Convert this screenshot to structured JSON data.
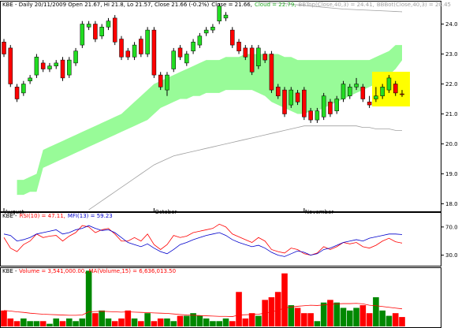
{
  "chart_data": [
    {
      "type": "candlestick",
      "title": "KBE - Daily 20/11/2009 Open 21.67, Hi 21.8, Lo 21.57, Close 21.66 (-0.2%)",
      "categories": [
        "August",
        null,
        null,
        null,
        null,
        null,
        null,
        null,
        null,
        null,
        null,
        null,
        null,
        null,
        null,
        null,
        null,
        null,
        null,
        null,
        null,
        null,
        null,
        "October",
        null,
        null,
        null,
        null,
        null,
        null,
        null,
        null,
        null,
        null,
        null,
        null,
        null,
        null,
        null,
        null,
        null,
        null,
        null,
        null,
        null,
        null,
        "November",
        null,
        null,
        null,
        null,
        null,
        null,
        null,
        null,
        null,
        null,
        null,
        null,
        null,
        null,
        null
      ],
      "candles": {
        "name": "Close = 21.66,",
        "color": "#000000",
        "up_color": "#22dd22",
        "down_color": "#ff0000",
        "open": [
          23.4,
          23.2,
          21.9,
          21.7,
          22.1,
          22.3,
          22.7,
          22.5,
          22.6,
          22.8,
          22.3,
          22.7,
          23.3,
          23.9,
          24.0,
          23.6,
          23.9,
          24.2,
          23.5,
          23.1,
          22.9,
          23.5,
          23.0,
          23.8,
          22.3,
          21.8,
          22.5,
          23.2,
          22.7,
          23.1,
          23.3,
          23.7,
          23.8,
          24.1,
          24.2,
          23.8,
          23.4,
          23.2,
          23.2,
          22.6,
          23.0,
          23.0,
          21.9,
          21.8,
          21.3,
          21.7,
          21.8,
          21.1,
          20.8,
          20.9,
          21.4,
          21.1,
          21.5,
          21.6,
          21.9,
          21.9,
          21.4,
          21.5,
          21.6,
          21.8,
          22.0,
          21.67
        ],
        "high": [
          23.5,
          23.3,
          22.0,
          22.1,
          22.3,
          23.0,
          22.8,
          22.7,
          22.8,
          22.9,
          22.9,
          23.2,
          24.1,
          24.1,
          24.1,
          24.0,
          24.2,
          24.3,
          23.6,
          23.2,
          23.4,
          23.6,
          23.9,
          23.9,
          22.4,
          22.4,
          23.2,
          23.3,
          23.1,
          23.5,
          23.7,
          23.9,
          24.0,
          24.7,
          24.4,
          23.9,
          23.5,
          23.3,
          23.3,
          23.3,
          23.1,
          23.1,
          22.0,
          21.9,
          21.9,
          21.8,
          21.9,
          21.2,
          21.2,
          21.7,
          21.5,
          21.6,
          22.1,
          22.0,
          22.2,
          22.0,
          21.6,
          21.9,
          22.0,
          22.3,
          22.1,
          21.8
        ],
        "low": [
          22.9,
          21.9,
          21.4,
          21.6,
          22.0,
          22.2,
          22.4,
          22.4,
          22.5,
          22.1,
          22.2,
          22.6,
          23.2,
          23.8,
          23.4,
          23.5,
          23.8,
          23.3,
          22.8,
          22.8,
          22.8,
          22.9,
          22.9,
          22.2,
          21.8,
          21.6,
          22.4,
          22.8,
          22.6,
          23.0,
          23.2,
          23.6,
          23.7,
          24.0,
          24.1,
          23.2,
          23.0,
          22.8,
          22.3,
          22.5,
          22.7,
          21.7,
          21.5,
          20.9,
          21.2,
          21.3,
          20.8,
          20.7,
          20.7,
          20.8,
          20.9,
          21.0,
          21.4,
          21.5,
          21.8,
          21.4,
          21.2,
          21.4,
          21.5,
          21.7,
          21.6,
          21.57
        ],
        "close": [
          23.0,
          22.0,
          21.5,
          22.0,
          22.2,
          22.9,
          22.5,
          22.6,
          22.7,
          22.2,
          22.8,
          23.1,
          24.0,
          24.0,
          23.5,
          23.9,
          24.1,
          23.4,
          22.9,
          22.9,
          23.3,
          23.0,
          23.8,
          22.3,
          21.9,
          22.3,
          23.1,
          22.9,
          23.0,
          23.4,
          23.6,
          23.8,
          23.9,
          24.6,
          24.3,
          23.3,
          23.1,
          22.9,
          22.4,
          23.2,
          22.8,
          21.8,
          21.6,
          21.0,
          21.8,
          21.4,
          20.9,
          20.8,
          21.1,
          21.6,
          21.0,
          21.5,
          22.0,
          21.9,
          22.0,
          21.5,
          21.3,
          21.6,
          21.9,
          22.2,
          21.7,
          21.66
        ]
      },
      "cloud": {
        "name": "Cloud = 22.79,",
        "color": "#98fb98",
        "upper": [
          null,
          null,
          18.8,
          18.8,
          18.9,
          19.0,
          19.8,
          19.9,
          20.0,
          20.1,
          20.2,
          20.3,
          20.4,
          20.5,
          20.6,
          20.7,
          20.8,
          20.9,
          21.0,
          21.2,
          21.4,
          21.6,
          21.8,
          22.0,
          22.1,
          22.2,
          22.3,
          22.4,
          22.5,
          22.6,
          22.7,
          22.8,
          22.8,
          22.8,
          22.9,
          22.9,
          22.9,
          23.0,
          23.0,
          23.0,
          23.0,
          23.0,
          23.0,
          22.9,
          22.9,
          22.8,
          22.8,
          22.8,
          22.8,
          22.8,
          22.8,
          22.8,
          22.8,
          22.8,
          22.8,
          22.8,
          22.8,
          22.9,
          23.0,
          23.1,
          23.3,
          23.3
        ],
        "lower": [
          null,
          null,
          18.3,
          18.3,
          18.4,
          18.4,
          19.2,
          19.3,
          19.4,
          19.5,
          19.6,
          19.7,
          19.8,
          19.9,
          20.0,
          20.1,
          20.2,
          20.3,
          20.4,
          20.5,
          20.6,
          20.7,
          20.8,
          21.0,
          21.2,
          21.3,
          21.4,
          21.5,
          21.5,
          21.6,
          21.6,
          21.7,
          21.7,
          21.7,
          21.8,
          21.8,
          21.8,
          21.8,
          21.8,
          21.7,
          21.6,
          21.4,
          21.3,
          21.2,
          21.1,
          21.0,
          21.0,
          21.1,
          21.1,
          21.2,
          21.3,
          21.4,
          21.5,
          21.6,
          21.7,
          21.8,
          21.9,
          22.0,
          22.2,
          22.3,
          22.5,
          22.79
        ]
      },
      "series": [
        {
          "name": "BBTop(Close,40,3) = 24.41,",
          "color": "#a0a0a0",
          "values": [
            null,
            null,
            null,
            null,
            null,
            null,
            null,
            null,
            null,
            null,
            null,
            null,
            null,
            null,
            null,
            null,
            null,
            null,
            null,
            null,
            null,
            null,
            null,
            null,
            null,
            null,
            null,
            null,
            null,
            null,
            null,
            null,
            null,
            null,
            null,
            null,
            null,
            null,
            null,
            24.72,
            24.72,
            24.71,
            24.7,
            24.68,
            24.66,
            24.64,
            24.62,
            24.6,
            24.58,
            24.56,
            24.54,
            24.52,
            24.5,
            24.49,
            24.48,
            24.47,
            24.46,
            24.45,
            24.44,
            24.43,
            24.42,
            24.41
          ]
        },
        {
          "name": "BBBot(Close,40,3) = 20.45",
          "color": "#a0a0a0",
          "values": [
            null,
            null,
            null,
            null,
            null,
            null,
            null,
            null,
            null,
            null,
            null,
            null,
            null,
            17.8,
            17.95,
            18.1,
            18.25,
            18.4,
            18.55,
            18.7,
            18.85,
            19.0,
            19.15,
            19.3,
            19.4,
            19.5,
            19.6,
            19.65,
            19.7,
            19.75,
            19.8,
            19.85,
            19.9,
            19.95,
            20.0,
            20.05,
            20.1,
            20.15,
            20.2,
            20.25,
            20.3,
            20.35,
            20.4,
            20.45,
            20.5,
            20.55,
            20.6,
            20.6,
            20.6,
            20.6,
            20.6,
            20.6,
            20.6,
            20.6,
            20.6,
            20.55,
            20.55,
            20.5,
            20.5,
            20.5,
            20.45,
            20.45
          ]
        }
      ],
      "ylim": [
        17.75,
        24.75
      ],
      "yticks": [
        {
          "value": 18,
          "label": "18.0"
        },
        {
          "value": 19,
          "label": "19.0"
        },
        {
          "value": 20,
          "label": "20.0"
        },
        {
          "value": 21,
          "label": "21.0"
        },
        {
          "value": 22,
          "label": "22.0"
        },
        {
          "value": 23,
          "label": "23.0"
        },
        {
          "value": 24,
          "label": "24.0"
        }
      ]
    },
    {
      "type": "line",
      "title": "KBE -",
      "series": [
        {
          "name": "RSI(10) = 47.11,",
          "color": "#ff0000",
          "values": [
            55,
            40,
            35,
            45,
            50,
            60,
            55,
            57,
            58,
            50,
            57,
            62,
            72,
            70,
            62,
            66,
            68,
            60,
            50,
            50,
            55,
            50,
            60,
            45,
            38,
            45,
            58,
            55,
            57,
            62,
            64,
            66,
            68,
            74,
            70,
            60,
            56,
            52,
            48,
            55,
            50,
            38,
            35,
            33,
            40,
            38,
            32,
            30,
            33,
            42,
            38,
            42,
            48,
            46,
            48,
            42,
            40,
            44,
            50,
            54,
            49,
            47.11
          ]
        },
        {
          "name": "MFI(13) = 59.23",
          "color": "#0000cc",
          "values": [
            60,
            58,
            50,
            52,
            55,
            60,
            62,
            64,
            66,
            60,
            62,
            66,
            68,
            72,
            68,
            65,
            66,
            62,
            55,
            48,
            45,
            42,
            46,
            40,
            35,
            32,
            38,
            45,
            48,
            52,
            55,
            58,
            60,
            62,
            58,
            52,
            48,
            45,
            42,
            44,
            40,
            34,
            30,
            28,
            32,
            36,
            34,
            30,
            32,
            38,
            40,
            44,
            48,
            50,
            52,
            50,
            54,
            56,
            58,
            60,
            60,
            59.23
          ]
        }
      ],
      "ylim": [
        15,
        90
      ],
      "yticks": [
        {
          "value": 70,
          "label": "70.0"
        },
        {
          "value": 30,
          "label": "30.0"
        }
      ]
    },
    {
      "type": "bar",
      "title": "KBE -",
      "up_color": "#008800",
      "down_color": "#ff0000",
      "series": [
        {
          "name": "Volume = 3,541,000.00,",
          "color": "#ff0000",
          "values": [
            6000000,
            3000000,
            2000000,
            3000000,
            2000000,
            2000000,
            2000000,
            1000000,
            3000000,
            2000000,
            3000000,
            2000000,
            3000000,
            21000000,
            5000000,
            6000000,
            3000000,
            2000000,
            3000000,
            6000000,
            3000000,
            2000000,
            5000000,
            2000000,
            3000000,
            3000000,
            2000000,
            4000000,
            4000000,
            5000000,
            4000000,
            3000000,
            2000000,
            2000000,
            3000000,
            2000000,
            13000000,
            3000000,
            5000000,
            4000000,
            10000000,
            11000000,
            13000000,
            20000000,
            8000000,
            7000000,
            5000000,
            5000000,
            2000000,
            9000000,
            10000000,
            9000000,
            7000000,
            6000000,
            7000000,
            8000000,
            5000000,
            11000000,
            6000000,
            4000000,
            5000000,
            3541000
          ]
        },
        {
          "name": "MA(Volume,15) = 6,636,013.50",
          "type": "line",
          "color": "#ff0000",
          "values": [
            6000000,
            5800000,
            5500000,
            5300000,
            5000000,
            4800000,
            4600000,
            4500000,
            4400000,
            4300000,
            4200000,
            4200000,
            4300000,
            5500000,
            5600000,
            5700000,
            5600000,
            5500000,
            5400000,
            5500000,
            5400000,
            5300000,
            5200000,
            5100000,
            5000000,
            4900000,
            4700000,
            4500000,
            4300000,
            4200000,
            4100000,
            4000000,
            3900000,
            3800000,
            3800000,
            3700000,
            4300000,
            4400000,
            4500000,
            4600000,
            5000000,
            5500000,
            6000000,
            7000000,
            7300000,
            7600000,
            7800000,
            8000000,
            7900000,
            8100000,
            8300000,
            8500000,
            8600000,
            8600000,
            8700000,
            8500000,
            8000000,
            7800000,
            7500000,
            7200000,
            6900000,
            6636013.5
          ]
        }
      ],
      "ylim": [
        0,
        22000000
      ]
    }
  ]
}
